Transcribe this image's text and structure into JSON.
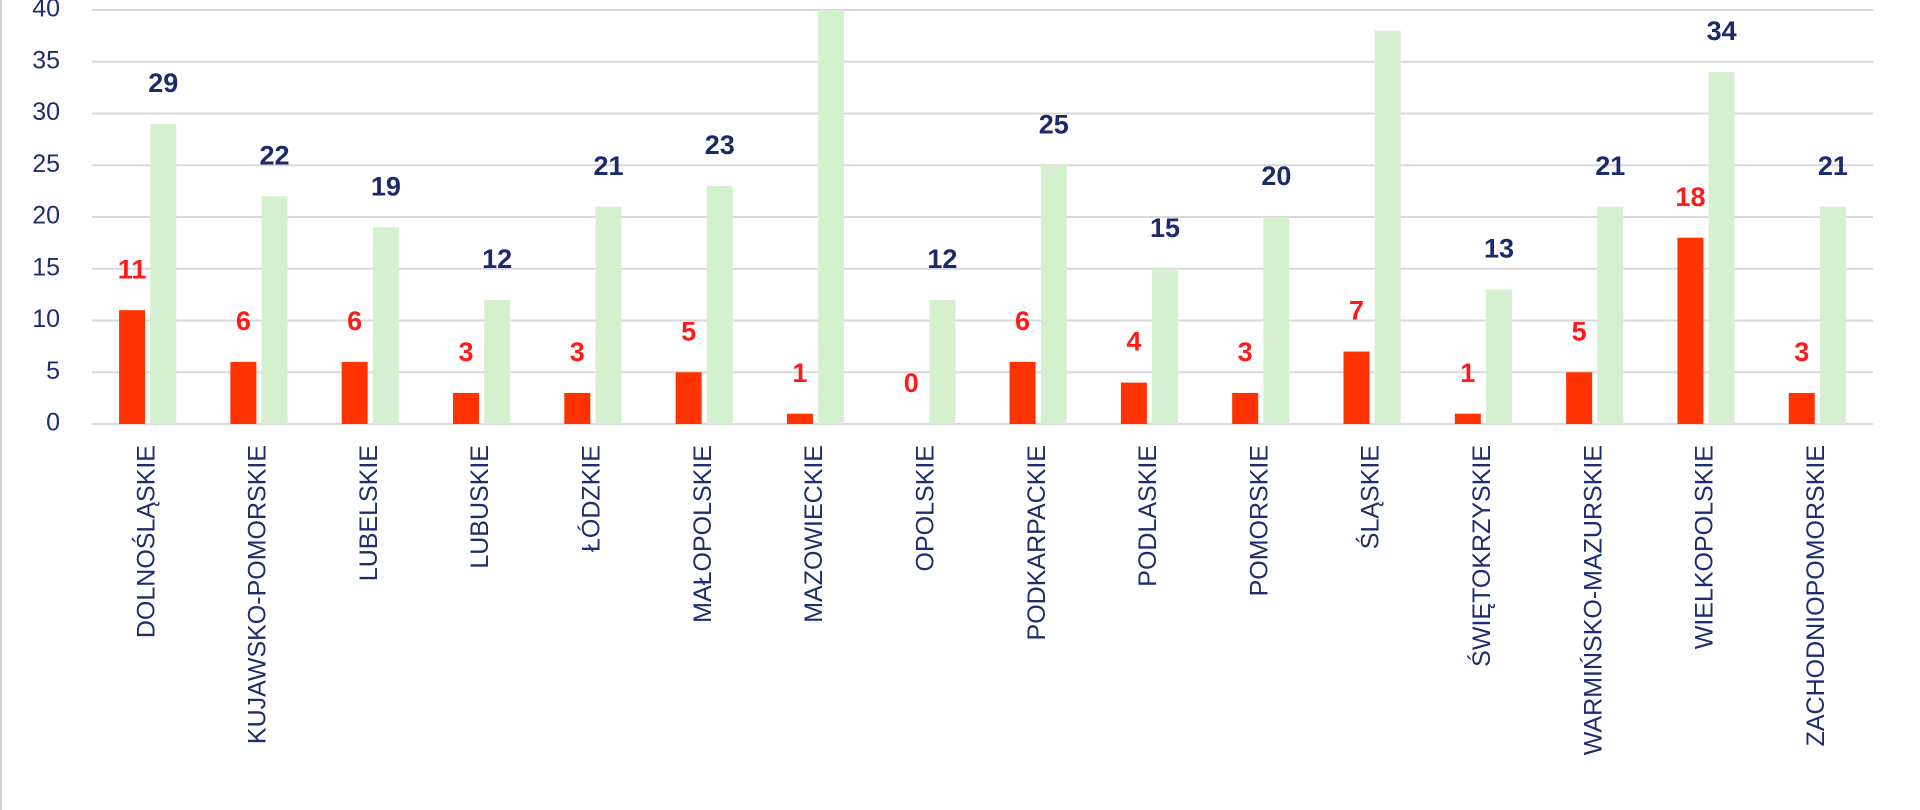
{
  "chart_data": {
    "type": "bar",
    "categories": [
      "DOLNOŚLĄSKIE",
      "KUJAWSKO-POMORSKIE",
      "LUBELSKIE",
      "LUBUSKIE",
      "ŁÓDZKIE",
      "MAŁOPOLSKIE",
      "MAZOWIECKIE",
      "OPOLSKIE",
      "PODKARPACKIE",
      "PODLASKIE",
      "POMORSKIE",
      "ŚLĄSKIE",
      "ŚWIĘTOKRZYSKIE",
      "WARMIŃSKO-MAZURSKIE",
      "WIELKOPOLSKIE",
      "ZACHODNIOPOMORSKIE"
    ],
    "series": [
      {
        "color": "#ff3300",
        "label_color": "#ff1a1a",
        "values": [
          11,
          6,
          6,
          3,
          3,
          5,
          1,
          0,
          6,
          4,
          3,
          7,
          1,
          5,
          18,
          3
        ]
      },
      {
        "color": "#d5f0cf",
        "label_color": "#1a2a6c",
        "values": [
          29,
          22,
          19,
          12,
          21,
          23,
          40,
          12,
          25,
          15,
          20,
          38,
          13,
          21,
          34,
          21
        ]
      }
    ],
    "ylim": [
      0,
      40
    ],
    "yticks": [
      0,
      5,
      10,
      15,
      20,
      25,
      30,
      35,
      40
    ],
    "grid": true
  }
}
